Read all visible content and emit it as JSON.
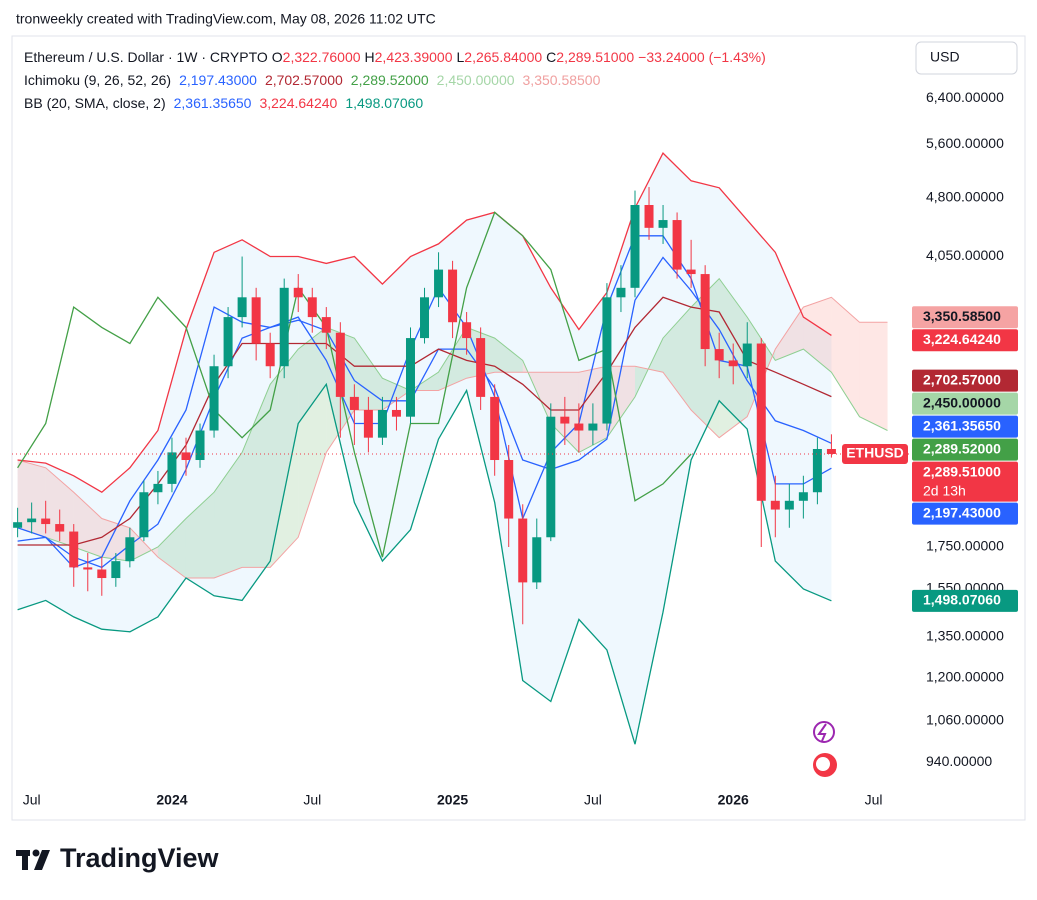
{
  "header": {
    "credit": "tronweekly created with TradingView.com, May 08, 2026 11:02 UTC",
    "symbol": "Ethereum / U.S. Dollar · 1W · CRYPTO",
    "ohlc": [
      {
        "key": "O",
        "label": "2,322.76000"
      },
      {
        "key": "H",
        "label": "2,423.39000"
      },
      {
        "key": "L",
        "label": "2,265.84000"
      },
      {
        "key": "C",
        "label": "2,289.51000"
      }
    ],
    "change": "−33.24000 (−1.43%)",
    "change_color": "#f23645",
    "indicators": [
      {
        "name": "Ichimoku (9, 26, 52, 26)",
        "values": [
          {
            "label": "2,197.43000",
            "color": "#2962ff"
          },
          {
            "label": "2,702.57000",
            "color": "#b22833"
          },
          {
            "label": "2,289.52000",
            "color": "#43a047"
          },
          {
            "label": "2,450.00000",
            "color": "#a5d6a7"
          },
          {
            "label": "3,350.58500",
            "color": "#f0a0a0"
          }
        ]
      },
      {
        "name": "BB (20, SMA, close, 2)",
        "values": [
          {
            "label": "2,361.35650",
            "color": "#2962ff"
          },
          {
            "label": "3,224.64240",
            "color": "#f23645"
          },
          {
            "label": "1,498.07060",
            "color": "#089981"
          }
        ]
      }
    ]
  },
  "brand": "TradingView",
  "chart_data": {
    "type": "candlestick",
    "y_scale": "log",
    "currency": "USD",
    "xlim": [
      2023.43,
      2026.63
    ],
    "ylim": [
      880,
      7570
    ],
    "xticks": [
      {
        "value": 2023.5,
        "label": "Jul"
      },
      2024,
      {
        "value": 2024.5,
        "label": "Jul"
      },
      2025,
      {
        "value": 2025.5,
        "label": "Jul"
      },
      2026,
      {
        "value": 2026.5,
        "label": "Jul"
      }
    ],
    "yticks": [
      {
        "value": 6400,
        "label": "6,400.00000"
      },
      {
        "value": 5600,
        "label": "5,600.00000"
      },
      {
        "value": 4800,
        "label": "4,800.00000"
      },
      {
        "value": 4050,
        "label": "4,050.00000"
      },
      {
        "value": 1750,
        "label": "1,750.00000"
      },
      {
        "value": 1550,
        "label": "1,550.00000"
      },
      {
        "value": 1350,
        "label": "1,350.00000"
      },
      {
        "value": 1200,
        "label": "1,200.00000"
      },
      {
        "value": 1060,
        "label": "1,060.00000"
      },
      {
        "value": 940,
        "label": "940.00000"
      }
    ],
    "candles": {
      "up_color": "#089981",
      "down_color": "#f23645",
      "x": [
        2023.45,
        2023.5,
        2023.55,
        2023.6,
        2023.65,
        2023.7,
        2023.75,
        2023.8,
        2023.85,
        2023.9,
        2023.95,
        2024.0,
        2024.05,
        2024.1,
        2024.15,
        2024.2,
        2024.25,
        2024.3,
        2024.35,
        2024.4,
        2024.45,
        2024.5,
        2024.55,
        2024.6,
        2024.65,
        2024.7,
        2024.75,
        2024.8,
        2024.85,
        2024.9,
        2024.95,
        2025.0,
        2025.05,
        2025.1,
        2025.15,
        2025.2,
        2025.25,
        2025.3,
        2025.35,
        2025.4,
        2025.45,
        2025.5,
        2025.55,
        2025.6,
        2025.65,
        2025.7,
        2025.75,
        2025.8,
        2025.85,
        2025.9,
        2025.95,
        2026.0,
        2026.05,
        2026.1,
        2026.15,
        2026.2,
        2026.25,
        2026.3,
        2026.35
      ],
      "open": [
        1850,
        1880,
        1900,
        1870,
        1830,
        1650,
        1640,
        1600,
        1680,
        1800,
        2050,
        2100,
        2300,
        2250,
        2450,
        2950,
        3400,
        3600,
        3150,
        2950,
        3700,
        3600,
        3400,
        3250,
        2700,
        2600,
        2400,
        2600,
        2550,
        3200,
        3600,
        3900,
        3350,
        3200,
        2700,
        2250,
        1900,
        1580,
        1800,
        2550,
        2500,
        2450,
        2500,
        3600,
        3700,
        4700,
        4400,
        4500,
        3900,
        3850,
        3100,
        3000,
        2950,
        3150,
        2000,
        1950,
        2000,
        2050,
        2322.76
      ],
      "high": [
        1960,
        1990,
        2000,
        1950,
        1870,
        1720,
        1700,
        1720,
        1850,
        2120,
        2180,
        2400,
        2400,
        2500,
        3050,
        3500,
        4050,
        3700,
        3250,
        3800,
        3850,
        3700,
        3500,
        3350,
        2800,
        2700,
        2700,
        2700,
        3300,
        3700,
        4100,
        4000,
        3450,
        3300,
        2800,
        2350,
        1980,
        1900,
        2650,
        2700,
        2650,
        2650,
        3750,
        3950,
        4900,
        4950,
        4700,
        4600,
        4250,
        3950,
        3250,
        3150,
        3350,
        3200,
        2150,
        2100,
        2150,
        2400,
        2423.39
      ],
      "low": [
        1800,
        1820,
        1820,
        1780,
        1560,
        1540,
        1520,
        1560,
        1650,
        1780,
        1980,
        2050,
        2150,
        2200,
        2400,
        2850,
        3300,
        3000,
        2850,
        2850,
        3450,
        3250,
        3100,
        2400,
        2350,
        2300,
        2350,
        2450,
        2500,
        3150,
        3500,
        3200,
        3050,
        2600,
        2150,
        1750,
        1400,
        1550,
        1780,
        2350,
        2300,
        2350,
        2450,
        3450,
        3600,
        4250,
        4200,
        3800,
        3700,
        2950,
        2850,
        2800,
        2850,
        1750,
        1800,
        1850,
        1900,
        1980,
        2265.84
      ],
      "close": [
        1880,
        1900,
        1870,
        1830,
        1650,
        1640,
        1600,
        1680,
        1800,
        2050,
        2100,
        2300,
        2250,
        2450,
        2950,
        3400,
        3600,
        3150,
        2950,
        3700,
        3600,
        3400,
        3250,
        2700,
        2600,
        2400,
        2600,
        2550,
        3200,
        3600,
        3900,
        3350,
        3200,
        2700,
        2250,
        1900,
        1580,
        1800,
        2550,
        2500,
        2450,
        2500,
        3600,
        3700,
        4700,
        4400,
        4500,
        3900,
        3850,
        3100,
        3000,
        2950,
        3150,
        2000,
        1950,
        2000,
        2050,
        2322.76,
        2289.51
      ]
    },
    "bollinger": {
      "upper_color": "#f23645",
      "basis_color": "#2962ff",
      "lower_color": "#089981",
      "fill": "rgba(33,150,243,0.07)",
      "x": [
        2023.45,
        2023.55,
        2023.65,
        2023.75,
        2023.85,
        2023.95,
        2024.05,
        2024.15,
        2024.25,
        2024.35,
        2024.45,
        2024.55,
        2024.65,
        2024.75,
        2024.85,
        2024.95,
        2025.05,
        2025.15,
        2025.25,
        2025.35,
        2025.45,
        2025.55,
        2025.65,
        2025.75,
        2025.85,
        2025.95,
        2026.05,
        2026.15,
        2026.25,
        2026.35
      ],
      "upper": [
        2250,
        2230,
        2150,
        2050,
        2200,
        2450,
        3280,
        4100,
        4250,
        4050,
        4050,
        3970,
        4050,
        3740,
        4050,
        4200,
        4500,
        4600,
        4300,
        3700,
        3280,
        3650,
        4660,
        5460,
        5040,
        4940,
        4500,
        4100,
        3400,
        3224.6424
      ],
      "basis": [
        1780,
        1800,
        1700,
        1650,
        1760,
        1870,
        2190,
        2690,
        3200,
        3300,
        3370,
        3270,
        2830,
        2670,
        2670,
        3100,
        3100,
        2770,
        2250,
        2190,
        2250,
        2390,
        3570,
        4040,
        3670,
        3280,
        2830,
        2520,
        2450,
        2361.3565
      ],
      "lower": [
        1460,
        1500,
        1430,
        1380,
        1370,
        1430,
        1600,
        1520,
        1500,
        1680,
        2500,
        2800,
        1990,
        1680,
        1840,
        2390,
        2750,
        1990,
        1190,
        1120,
        1420,
        1300,
        990,
        1450,
        2250,
        2670,
        2460,
        1680,
        1550,
        1498.0706
      ]
    },
    "ichimoku": {
      "conversion_color": "#2962ff",
      "base_color": "#b22833",
      "x": [
        2023.45,
        2023.55,
        2023.65,
        2023.75,
        2023.85,
        2023.95,
        2024.05,
        2024.15,
        2024.25,
        2024.35,
        2024.45,
        2024.55,
        2024.65,
        2024.75,
        2024.85,
        2024.95,
        2025.05,
        2025.15,
        2025.25,
        2025.35,
        2025.45,
        2025.55,
        2025.65,
        2025.75,
        2025.85,
        2025.95,
        2026.05,
        2026.15,
        2026.25,
        2026.35
      ],
      "conversion": [
        1850,
        1800,
        1650,
        1700,
        2000,
        2250,
        2600,
        3500,
        3350,
        3300,
        3400,
        3000,
        2500,
        2500,
        3100,
        3700,
        3300,
        2700,
        1900,
        2300,
        2500,
        3500,
        4300,
        4300,
        3800,
        3000,
        2950,
        2100,
        2100,
        2197.43
      ],
      "base": [
        1760,
        1760,
        1760,
        1800,
        1900,
        2100,
        2350,
        2800,
        3150,
        3150,
        3150,
        3150,
        2950,
        2950,
        2950,
        3100,
        3000,
        2950,
        2800,
        2600,
        2600,
        2900,
        3300,
        3600,
        3500,
        3450,
        3000,
        2900,
        2800,
        2702.57
      ],
      "lagging": {
        "color": "#43a047",
        "x": [
          2023.45,
          2023.55,
          2023.65,
          2023.75,
          2023.85,
          2023.95,
          2024.05,
          2024.15,
          2024.25,
          2024.35,
          2024.45,
          2024.55,
          2024.65,
          2024.75,
          2024.85,
          2024.95,
          2025.05,
          2025.15,
          2025.25,
          2025.35,
          2025.45,
          2025.55,
          2025.65,
          2025.75,
          2025.85
        ],
        "values": [
          2200,
          2500,
          3500,
          3300,
          3150,
          3600,
          3300,
          2600,
          2400,
          2600,
          3700,
          3300,
          2300,
          1700,
          2500,
          2500,
          3700,
          4600,
          4300,
          3900,
          3000,
          3100,
          2000,
          2100,
          2289.52
        ]
      },
      "cloud": {
        "span_a_color": "#8fcf92",
        "span_b_color": "#f3a3a3",
        "up_fill": "rgba(67,160,71,0.16)",
        "down_fill": "rgba(244,67,54,0.13)",
        "x": [
          2023.45,
          2023.55,
          2023.65,
          2023.75,
          2023.85,
          2023.95,
          2024.05,
          2024.15,
          2024.25,
          2024.35,
          2024.45,
          2024.55,
          2024.65,
          2024.75,
          2024.85,
          2024.95,
          2025.05,
          2025.15,
          2025.25,
          2025.35,
          2025.45,
          2025.55,
          2025.65,
          2025.75,
          2025.85,
          2025.95,
          2026.05,
          2026.15,
          2026.25,
          2026.35,
          2026.45,
          2026.55
        ],
        "span_a": [
          1850,
          1800,
          1750,
          1700,
          1680,
          1750,
          1900,
          2050,
          2300,
          2800,
          3100,
          3300,
          3200,
          2850,
          2750,
          2900,
          3300,
          3200,
          3000,
          2500,
          2300,
          2400,
          2700,
          3200,
          3500,
          3800,
          3400,
          3000,
          3100,
          2900,
          2550,
          2450
        ],
        "span_b": [
          2250,
          2200,
          2050,
          1900,
          1850,
          1700,
          1600,
          1600,
          1650,
          1650,
          1800,
          2300,
          2600,
          2600,
          2750,
          2750,
          2850,
          2900,
          2900,
          2900,
          2900,
          2950,
          2950,
          2900,
          2600,
          2400,
          2550,
          3100,
          3500,
          3600,
          3350.585,
          3350.585
        ]
      }
    },
    "price_tags": [
      {
        "value": 3350.585,
        "label": "3,350.58500",
        "bg": "#f5a3a3",
        "fg": "#131722"
      },
      {
        "value": 3224.6424,
        "label": "3,224.64240",
        "bg": "#f23645",
        "fg": "#ffffff"
      },
      {
        "value": 2702.57,
        "label": "2,702.57000",
        "bg": "#b22833",
        "fg": "#ffffff"
      },
      {
        "value": 2450,
        "label": "2,450.00000",
        "bg": "#a5d6a7",
        "fg": "#131722"
      },
      {
        "value": 2361.3565,
        "label": "2,361.35650",
        "bg": "#2962ff",
        "fg": "#ffffff"
      },
      {
        "value": 2289.52,
        "label": "2,289.52000",
        "bg": "#43a047",
        "fg": "#ffffff"
      },
      {
        "value": 2197.43,
        "label": "2,197.43000",
        "bg": "#2962ff",
        "fg": "#ffffff"
      },
      {
        "value": 1498.0706,
        "label": "1,498.07060",
        "bg": "#089981",
        "fg": "#ffffff"
      }
    ],
    "last_price": {
      "symbol": "ETHUSD",
      "value": 2289.51,
      "label": "2,289.51000",
      "countdown": "2d 13h",
      "color": "#f23645"
    }
  }
}
